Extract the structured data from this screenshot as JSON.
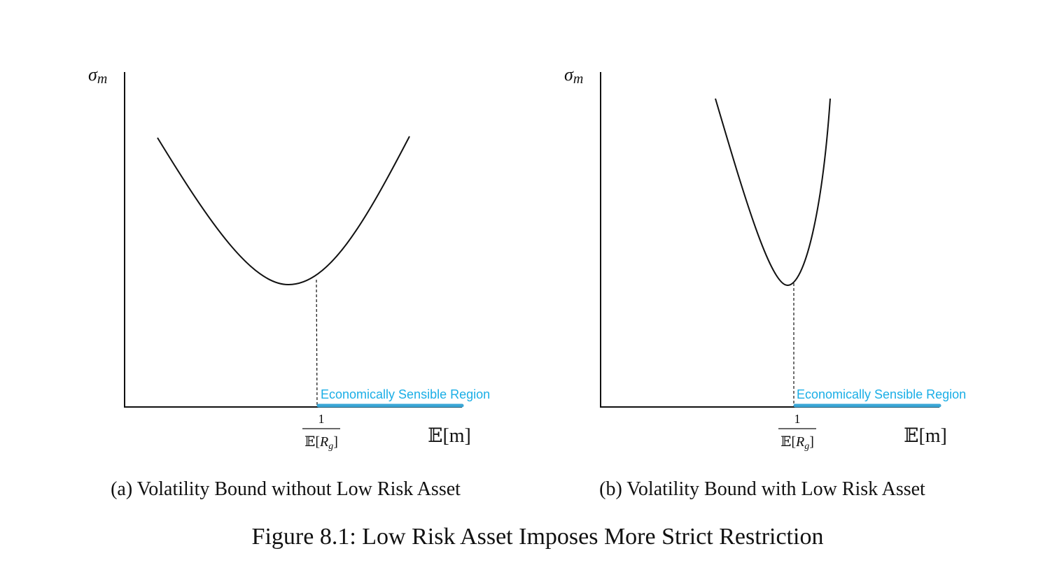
{
  "panels": [
    {
      "y_label": {
        "symbol": "σ",
        "subscript": "m"
      },
      "x_label": "𝔼[m]",
      "tick": {
        "numerator": "1",
        "denominator": {
          "open": "𝔼[",
          "var": "R",
          "sub": "g",
          "close": "]"
        }
      },
      "region_label": "Economically Sensible Region",
      "caption": "(a) Volatility Bound without Low Risk Asset"
    },
    {
      "y_label": {
        "symbol": "σ",
        "subscript": "m"
      },
      "x_label": "𝔼[m]",
      "tick": {
        "numerator": "1",
        "denominator": {
          "open": "𝔼[",
          "var": "R",
          "sub": "g",
          "close": "]"
        }
      },
      "region_label": "Economically Sensible Region",
      "caption": "(b) Volatility Bound with Low Risk Asset"
    }
  ],
  "figure_caption": "Figure 8.1: Low Risk Asset Imposes More Strict Restriction"
}
